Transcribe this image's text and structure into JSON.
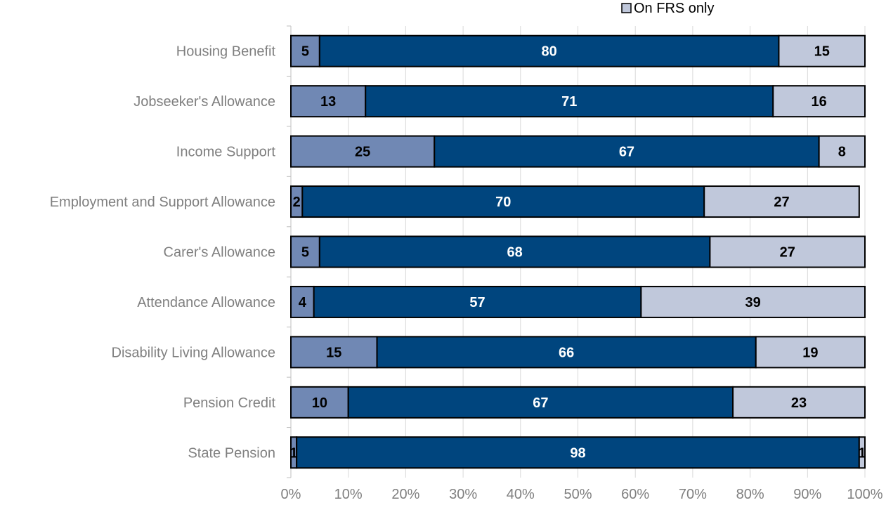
{
  "chart_data": {
    "type": "bar",
    "orientation": "horizontal",
    "stacked": true,
    "percent": true,
    "categories": [
      "Housing Benefit",
      "Jobseeker's Allowance",
      "Income Support",
      "Employment and Support Allowance",
      "Carer's Allowance",
      "Attendance Allowance",
      "Disability Living Allowance",
      "Pension Credit",
      "State Pension"
    ],
    "series": [
      {
        "values": [
          5,
          13,
          25,
          2,
          5,
          4,
          15,
          10,
          1
        ],
        "color": "#7088b4",
        "label_color": "#000000"
      },
      {
        "values": [
          80,
          71,
          67,
          70,
          68,
          57,
          66,
          67,
          98
        ],
        "color": "#00457e",
        "label_color": "#ffffff"
      },
      {
        "name": "On FRS only",
        "values": [
          15,
          16,
          8,
          27,
          27,
          39,
          19,
          23,
          1
        ],
        "color": "#c0c8db",
        "label_color": "#000000"
      }
    ],
    "xlim": [
      0,
      100
    ],
    "x_ticks": [
      "0%",
      "10%",
      "20%",
      "30%",
      "40%",
      "50%",
      "60%",
      "70%",
      "80%",
      "90%",
      "100%"
    ],
    "grid": true,
    "legend_position": "top-right"
  }
}
